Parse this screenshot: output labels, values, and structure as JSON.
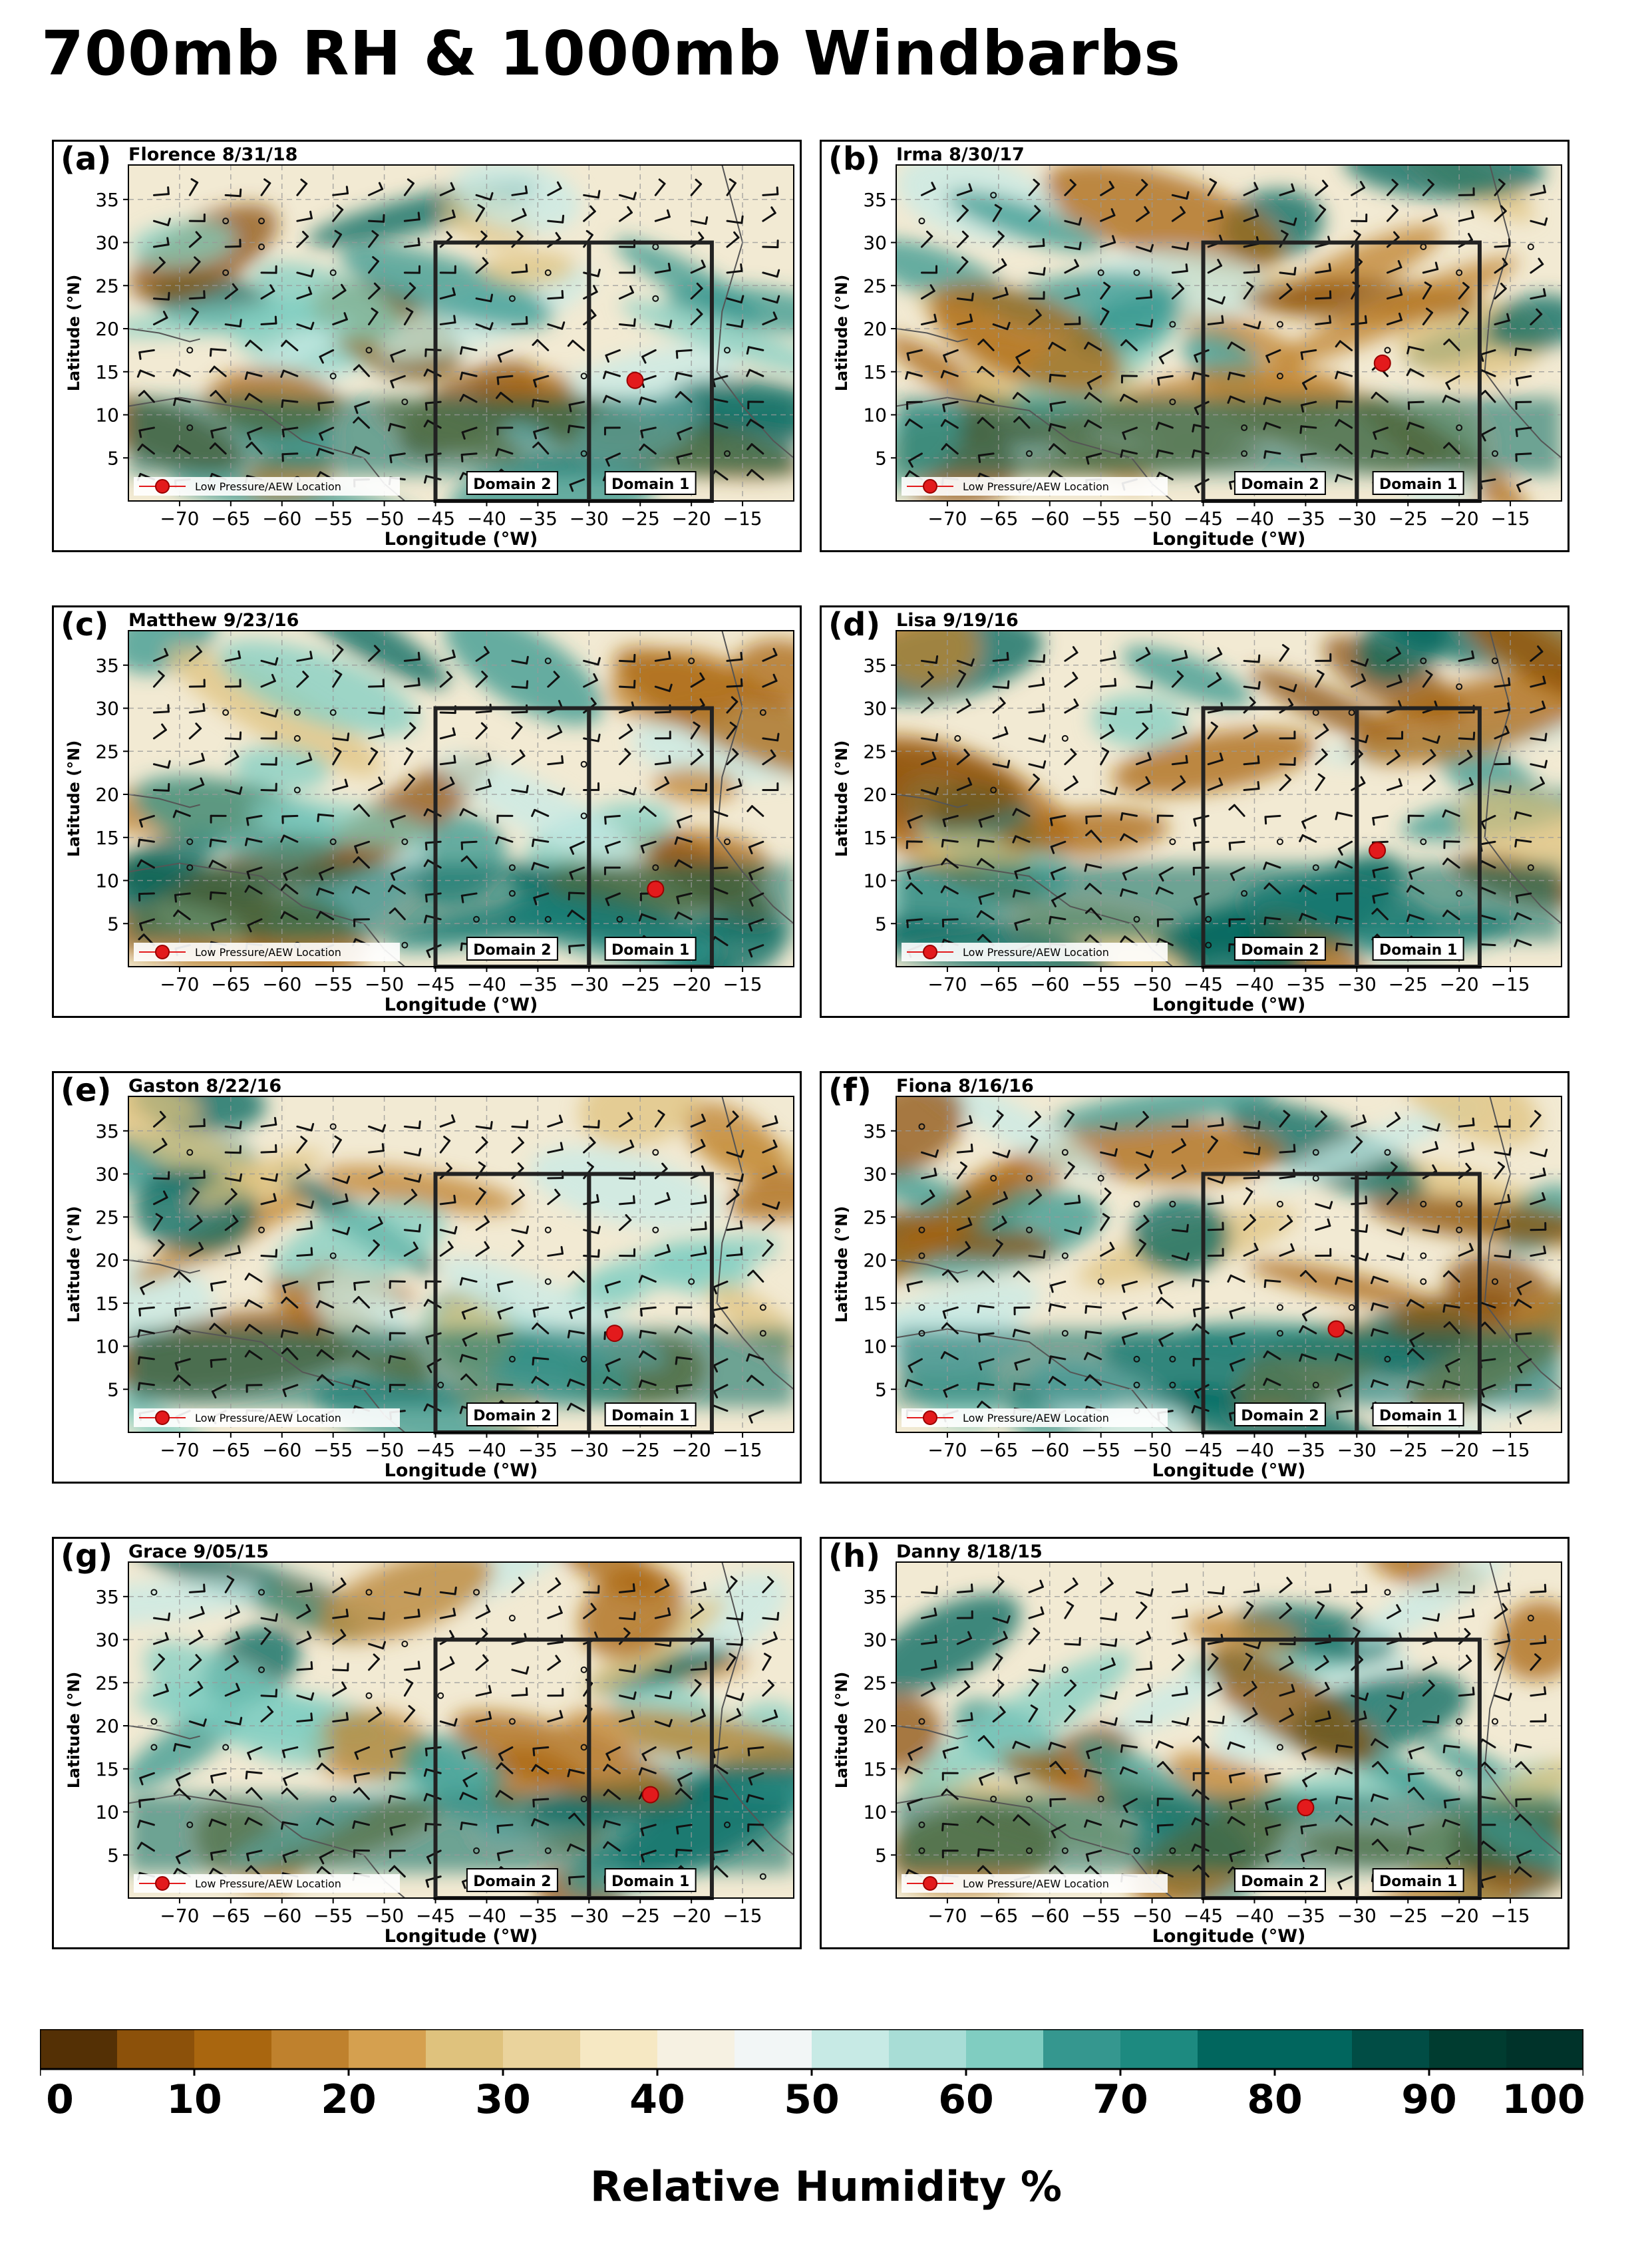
{
  "title": "700mb RH & 1000mb Windbarbs",
  "panels": [
    {
      "tag": "(a)",
      "storm": "Florence 8/31/18",
      "low_lon": -25.5,
      "low_lat": 14
    },
    {
      "tag": "(b)",
      "storm": "Irma 8/30/17",
      "low_lon": -27.5,
      "low_lat": 16
    },
    {
      "tag": "(c)",
      "storm": "Matthew 9/23/16",
      "low_lon": -23.5,
      "low_lat": 9
    },
    {
      "tag": "(d)",
      "storm": "Lisa 9/19/16",
      "low_lon": -28,
      "low_lat": 13.5
    },
    {
      "tag": "(e)",
      "storm": "Gaston 8/22/16",
      "low_lon": -27.5,
      "low_lat": 11.5
    },
    {
      "tag": "(f)",
      "storm": "Fiona 8/16/16",
      "low_lon": -32,
      "low_lat": 12
    },
    {
      "tag": "(g)",
      "storm": "Grace 9/05/15",
      "low_lon": -24,
      "low_lat": 12
    },
    {
      "tag": "(h)",
      "storm": "Danny 8/18/15",
      "low_lon": -35,
      "low_lat": 10.5
    }
  ],
  "map": {
    "x_ticks": [
      -70,
      -65,
      -60,
      -55,
      -50,
      -45,
      -40,
      -35,
      -30,
      -25,
      -20,
      -15
    ],
    "y_ticks": [
      5,
      10,
      15,
      20,
      25,
      30,
      35
    ],
    "xlabel": "Longitude (°W)",
    "ylabel": "Latitude (°N)",
    "lon_range": [
      -75,
      -10
    ],
    "lat_range": [
      0,
      39
    ],
    "domain1_label": "Domain 1",
    "domain2_label": "Domain 2",
    "domain2_lon": [
      -45,
      -30
    ],
    "domain1_lon": [
      -30,
      -18
    ],
    "domain_lat": [
      0,
      30
    ],
    "legend_label": "Low Pressure/AEW Location"
  },
  "colorbar": {
    "title": "Relative Humidity %",
    "tick_labels": [
      "0",
      "10",
      "20",
      "30",
      "40",
      "50",
      "60",
      "70",
      "80",
      "90",
      "100"
    ],
    "colors": [
      "#543005",
      "#8c510a",
      "#a9660f",
      "#bf812d",
      "#d5a04f",
      "#dfc27d",
      "#ead39c",
      "#f6e8c3",
      "#f6f1e2",
      "#f2f6f6",
      "#c7eae5",
      "#a8ddd6",
      "#80cdc1",
      "#35978f",
      "#1d8a80",
      "#01665e",
      "#01665e",
      "#014d45",
      "#003c30",
      "#00332a"
    ]
  }
}
